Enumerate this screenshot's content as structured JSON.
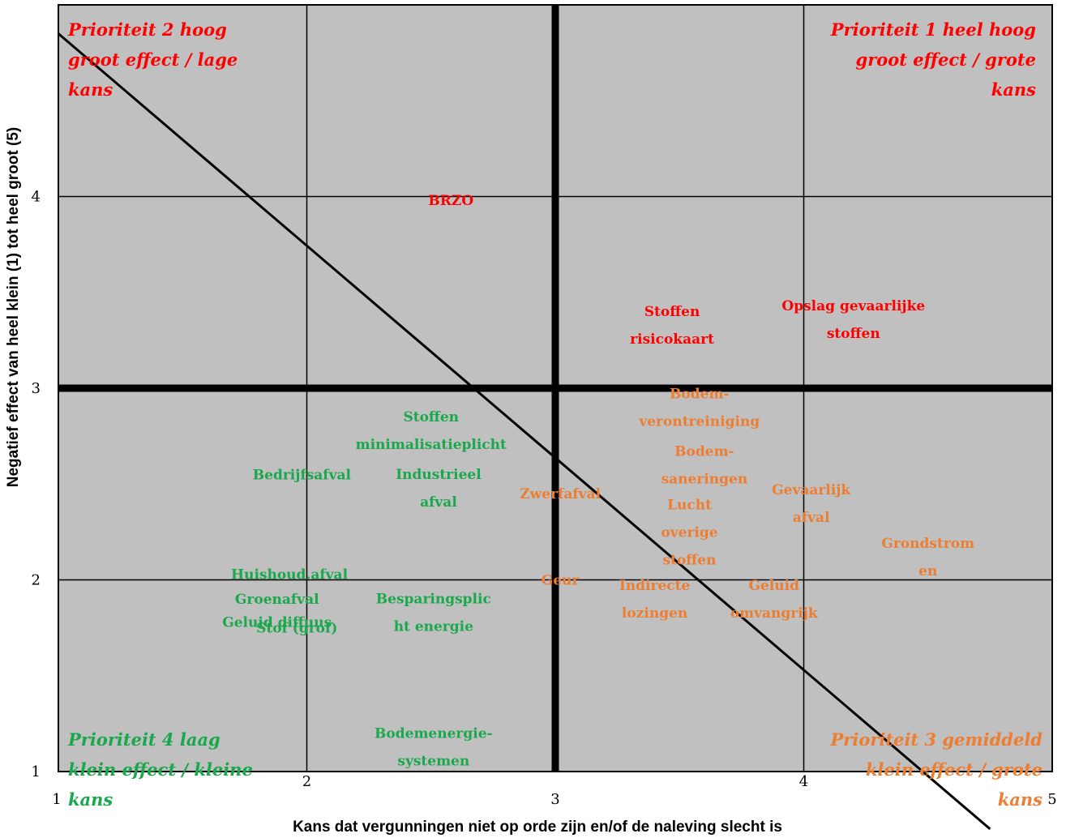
{
  "chart_data": {
    "type": "scatter",
    "xlabel": "Kans dat vergunningen niet op orde zijn en/of de naleving slecht is",
    "ylabel": "Negatief effect van heel klein (1) tot heel groot (5)",
    "xlim": [
      1,
      5
    ],
    "ylim": [
      1,
      5
    ],
    "xticks": [
      "1",
      "2",
      "3",
      "4",
      "5"
    ],
    "yticks": [
      "1",
      "2",
      "3",
      "4"
    ],
    "grid": true,
    "colors": {
      "red": "#ff0000",
      "orange": "#ed7d31",
      "green": "#1aa84c",
      "plot_bg": "#c0c0c0"
    },
    "diagonal": {
      "from": [
        1,
        4.85
      ],
      "to": [
        4.75,
        0.7
      ]
    },
    "divider": {
      "x": 3,
      "y": 3
    },
    "quadrants": [
      {
        "lines": [
          "Prioriteit 2 hoog",
          "groot effect / lage",
          "kans"
        ],
        "color": "red",
        "anchor": "top-left"
      },
      {
        "lines": [
          "Prioriteit 1 heel hoog",
          "groot effect / grote",
          "kans"
        ],
        "color": "red",
        "anchor": "top-right"
      },
      {
        "lines": [
          "Prioriteit 4 laag",
          "klein effect / kleine",
          "kans"
        ],
        "color": "green",
        "anchor": "bottom-left"
      },
      {
        "lines": [
          "Prioriteit 3 gemiddeld",
          "klein effect / grote",
          "kans"
        ],
        "color": "orange",
        "anchor": "bottom-right"
      }
    ],
    "points": [
      {
        "lines": [
          "BRZO"
        ],
        "x": 2.58,
        "y": 3.98,
        "color": "red"
      },
      {
        "lines": [
          "Stoffen",
          "risicokaart"
        ],
        "x": 3.47,
        "y": 3.33,
        "color": "red"
      },
      {
        "lines": [
          "Opslag gevaarlijke",
          "stoffen"
        ],
        "x": 4.2,
        "y": 3.36,
        "color": "red"
      },
      {
        "lines": [
          "Bodem-",
          "verontreiniging"
        ],
        "x": 3.58,
        "y": 2.9,
        "color": "orange"
      },
      {
        "lines": [
          "Bodem-",
          "saneringen"
        ],
        "x": 3.6,
        "y": 2.6,
        "color": "orange"
      },
      {
        "lines": [
          "Zwerfafval"
        ],
        "x": 3.02,
        "y": 2.45,
        "color": "orange"
      },
      {
        "lines": [
          "Gevaarlijk",
          "afval"
        ],
        "x": 4.03,
        "y": 2.4,
        "color": "orange"
      },
      {
        "lines": [
          "Lucht",
          "overige",
          "stoffen"
        ],
        "x": 3.54,
        "y": 2.25,
        "color": "orange"
      },
      {
        "lines": [
          "Grondstrom",
          "en"
        ],
        "x": 4.5,
        "y": 2.12,
        "color": "orange"
      },
      {
        "lines": [
          "Geur"
        ],
        "x": 3.02,
        "y": 2.0,
        "color": "orange"
      },
      {
        "lines": [
          "Indirecte",
          "lozingen"
        ],
        "x": 3.4,
        "y": 1.9,
        "color": "orange"
      },
      {
        "lines": [
          "Geluid",
          "omvangrijk"
        ],
        "x": 3.88,
        "y": 1.9,
        "color": "orange"
      },
      {
        "lines": [
          "Stoffen",
          "minimalisatieplicht"
        ],
        "x": 2.5,
        "y": 2.78,
        "color": "green"
      },
      {
        "lines": [
          "Bedrijfsafval"
        ],
        "x": 1.98,
        "y": 2.55,
        "color": "green"
      },
      {
        "lines": [
          "Industrieel",
          "afval"
        ],
        "x": 2.53,
        "y": 2.48,
        "color": "green"
      },
      {
        "lines": [
          "Huishoud.afval"
        ],
        "x": 1.93,
        "y": 2.03,
        "color": "green"
      },
      {
        "lines": [
          "Groenafval"
        ],
        "x": 1.88,
        "y": 1.9,
        "color": "green"
      },
      {
        "lines": [
          "Geluid diffuus"
        ],
        "x": 1.88,
        "y": 1.78,
        "color": "green"
      },
      {
        "lines": [
          "Stof (grof)"
        ],
        "x": 1.96,
        "y": 1.75,
        "color": "green"
      },
      {
        "lines": [
          "Besparingsplic",
          "ht energie"
        ],
        "x": 2.51,
        "y": 1.83,
        "color": "green"
      },
      {
        "lines": [
          "Bodemenergie-",
          "systemen"
        ],
        "x": 2.51,
        "y": 1.13,
        "color": "green"
      }
    ]
  }
}
